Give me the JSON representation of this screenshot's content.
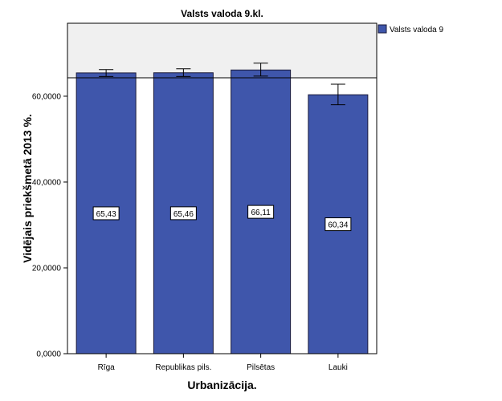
{
  "chart_data": {
    "type": "bar",
    "title": "Valsts valoda 9.kl.",
    "xlabel": "Urbanizācija.",
    "ylabel": "Vidējais priekšmetā 2013 %.",
    "categories": [
      "Rīga",
      "Republikas pils.",
      "Pilsētas",
      "Lauki"
    ],
    "series": [
      {
        "name": "Valsts valoda 9",
        "values": [
          65.43,
          65.46,
          66.11,
          60.34
        ],
        "value_labels": [
          "65,43",
          "65,46",
          "66,11",
          "60,34"
        ],
        "error_low": [
          64.6,
          64.6,
          64.7,
          58.0
        ],
        "error_high": [
          66.2,
          66.4,
          67.7,
          62.8
        ]
      }
    ],
    "reference_line": 64.3,
    "ylim": [
      0,
      77
    ],
    "yticks": [
      0,
      20,
      40,
      60
    ],
    "ytick_labels": [
      "0,0000",
      "20,0000",
      "40,0000",
      "60,0000"
    ],
    "legend_position": "top-right",
    "grid": false,
    "colors": {
      "bar_fill": "#3f56ab",
      "bar_stroke": "#1a1a3a",
      "plot_bg_above_ref": "#f0f0f0",
      "plot_bg_below_ref": "#ffffff"
    }
  }
}
